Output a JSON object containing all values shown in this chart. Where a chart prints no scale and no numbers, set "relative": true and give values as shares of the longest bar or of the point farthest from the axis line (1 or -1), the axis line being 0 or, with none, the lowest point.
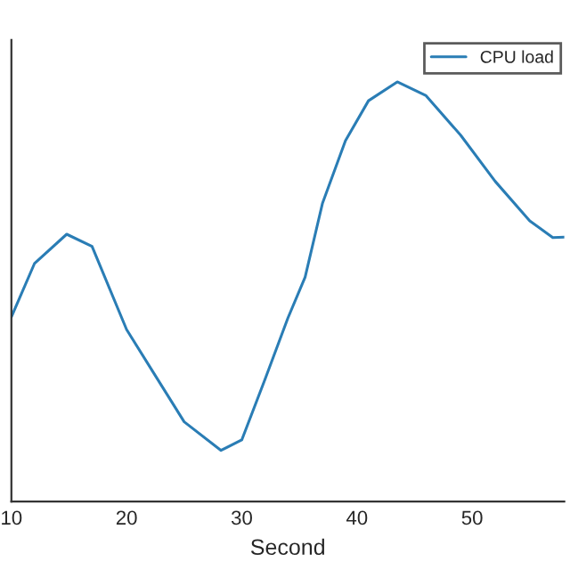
{
  "chart_data": {
    "type": "line",
    "xlabel": "Second",
    "relative": true,
    "tick_labels": "x",
    "legend": "top right",
    "grid": false,
    "xlim": [
      10,
      58
    ],
    "xticks": [
      10,
      20,
      30,
      40,
      50
    ],
    "x": [
      10,
      12,
      14.8,
      17,
      20,
      22.5,
      25,
      28.2,
      30,
      32,
      34,
      35.5,
      37,
      39,
      41,
      43.5,
      46,
      49,
      52,
      55,
      57,
      58
    ],
    "series": [
      {
        "name": "CPU load",
        "color": "#2a7db5",
        "values": [
          0.44,
          0.567,
          0.637,
          0.608,
          0.41,
          0.3,
          0.19,
          0.122,
          0.147,
          0.29,
          0.437,
          0.535,
          0.71,
          0.86,
          0.955,
          1,
          0.967,
          0.873,
          0.763,
          0.669,
          0.629,
          0.63
        ]
      }
    ]
  }
}
